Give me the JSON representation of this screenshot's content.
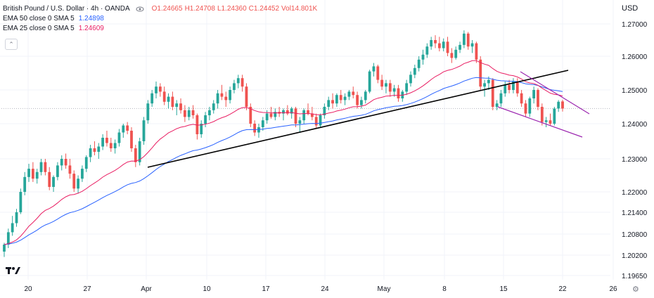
{
  "legend": {
    "symbol": "British Pound / U.S. Dollar · 4h · OANDA",
    "open": "O1.24665",
    "high": "H1.24708",
    "low": "L1.24360",
    "close": "C1.24452",
    "volume": "Vol14.801K",
    "ema50_label": "EMA 50 close 0 SMA 5",
    "ema50_value": "1.24898",
    "ema25_label": "EMA 25 close 0 SMA 5",
    "ema25_value": "1.24609"
  },
  "currency": "USD",
  "collapse_icon": "chevron-up-icon",
  "colors": {
    "up": "#26a69a",
    "down": "#ef5350",
    "ema50": "#2962ff",
    "ema25": "#e91e63",
    "trendline": "#000000",
    "channel": "#9c27b0"
  },
  "chart_data": {
    "type": "candlestick",
    "timeframe": "4h",
    "x_ticks": [
      "20",
      "27",
      "Apr",
      "10",
      "17",
      "24",
      "May",
      "8",
      "15",
      "22",
      "26"
    ],
    "y_ticks": [
      "1.27000",
      "1.26000",
      "1.25000",
      "1.24000",
      "1.23000",
      "1.22000",
      "1.21400",
      "1.20800",
      "1.20200",
      "1.19650"
    ],
    "last_price_line": 1.2445,
    "candles": [
      [
        1.203,
        1.2055,
        1.2015,
        1.205
      ],
      [
        1.205,
        1.2095,
        1.204,
        1.2085
      ],
      [
        1.2085,
        1.213,
        1.2075,
        1.211
      ],
      [
        1.211,
        1.215,
        1.21,
        1.214
      ],
      [
        1.214,
        1.221,
        1.2135,
        1.22
      ],
      [
        1.22,
        1.226,
        1.219,
        1.2245
      ],
      [
        1.2245,
        1.2285,
        1.223,
        1.227
      ],
      [
        1.227,
        1.229,
        1.223,
        1.224
      ],
      [
        1.224,
        1.227,
        1.2225,
        1.226
      ],
      [
        1.226,
        1.23,
        1.225,
        1.229
      ],
      [
        1.229,
        1.23,
        1.225,
        1.226
      ],
      [
        1.226,
        1.2275,
        1.2205,
        1.2215
      ],
      [
        1.2215,
        1.225,
        1.22,
        1.2245
      ],
      [
        1.2245,
        1.229,
        1.2235,
        1.228
      ],
      [
        1.228,
        1.231,
        1.2265,
        1.23
      ],
      [
        1.23,
        1.2315,
        1.227,
        1.228
      ],
      [
        1.228,
        1.23,
        1.224,
        1.2255
      ],
      [
        1.2255,
        1.2265,
        1.22,
        1.221
      ],
      [
        1.221,
        1.225,
        1.2195,
        1.224
      ],
      [
        1.224,
        1.228,
        1.223,
        1.227
      ],
      [
        1.227,
        1.231,
        1.226,
        1.2305
      ],
      [
        1.2305,
        1.234,
        1.229,
        1.233
      ],
      [
        1.233,
        1.235,
        1.231,
        1.232
      ],
      [
        1.232,
        1.2345,
        1.23,
        1.2335
      ],
      [
        1.2335,
        1.237,
        1.2325,
        1.236
      ],
      [
        1.236,
        1.238,
        1.2335,
        1.2345
      ],
      [
        1.2345,
        1.236,
        1.232,
        1.233
      ],
      [
        1.233,
        1.2355,
        1.2315,
        1.2345
      ],
      [
        1.2345,
        1.2385,
        1.2335,
        1.2375
      ],
      [
        1.2375,
        1.24,
        1.236,
        1.2395
      ],
      [
        1.2395,
        1.2405,
        1.237,
        1.238
      ],
      [
        1.238,
        1.239,
        1.232,
        1.233
      ],
      [
        1.233,
        1.234,
        1.2275,
        1.229
      ],
      [
        1.229,
        1.236,
        1.228,
        1.235
      ],
      [
        1.235,
        1.242,
        1.234,
        1.241
      ],
      [
        1.241,
        1.247,
        1.24,
        1.246
      ],
      [
        1.246,
        1.25,
        1.245,
        1.249
      ],
      [
        1.249,
        1.2525,
        1.2475,
        1.251
      ],
      [
        1.251,
        1.252,
        1.248,
        1.2495
      ],
      [
        1.2495,
        1.251,
        1.2455,
        1.2465
      ],
      [
        1.2465,
        1.249,
        1.2445,
        1.248
      ],
      [
        1.248,
        1.2495,
        1.244,
        1.245
      ],
      [
        1.245,
        1.247,
        1.2425,
        1.246
      ],
      [
        1.246,
        1.2475,
        1.243,
        1.244
      ],
      [
        1.244,
        1.2455,
        1.2405,
        1.242
      ],
      [
        1.242,
        1.245,
        1.241,
        1.244
      ],
      [
        1.244,
        1.2455,
        1.2415,
        1.2425
      ],
      [
        1.2425,
        1.243,
        1.2355,
        1.237
      ],
      [
        1.237,
        1.241,
        1.236,
        1.24
      ],
      [
        1.24,
        1.2435,
        1.239,
        1.2425
      ],
      [
        1.2425,
        1.245,
        1.241,
        1.244
      ],
      [
        1.244,
        1.247,
        1.243,
        1.246
      ],
      [
        1.246,
        1.25,
        1.2445,
        1.249
      ],
      [
        1.249,
        1.2515,
        1.247,
        1.248
      ],
      [
        1.248,
        1.2495,
        1.245,
        1.247
      ],
      [
        1.247,
        1.251,
        1.246,
        1.25
      ],
      [
        1.25,
        1.253,
        1.249,
        1.252
      ],
      [
        1.252,
        1.2545,
        1.2505,
        1.2535
      ],
      [
        1.2535,
        1.2545,
        1.2495,
        1.251
      ],
      [
        1.251,
        1.252,
        1.244,
        1.245
      ],
      [
        1.245,
        1.246,
        1.239,
        1.24
      ],
      [
        1.24,
        1.241,
        1.2365,
        1.2375
      ],
      [
        1.2375,
        1.24,
        1.236,
        1.239
      ],
      [
        1.239,
        1.242,
        1.238,
        1.241
      ],
      [
        1.241,
        1.244,
        1.24,
        1.243
      ],
      [
        1.243,
        1.245,
        1.2415,
        1.242
      ],
      [
        1.242,
        1.2445,
        1.241,
        1.2435
      ],
      [
        1.2435,
        1.245,
        1.242,
        1.243
      ],
      [
        1.243,
        1.2445,
        1.241,
        1.244
      ],
      [
        1.244,
        1.2455,
        1.2425,
        1.243
      ],
      [
        1.243,
        1.245,
        1.2415,
        1.2445
      ],
      [
        1.2445,
        1.245,
        1.239,
        1.24
      ],
      [
        1.24,
        1.242,
        1.2375,
        1.241
      ],
      [
        1.241,
        1.2445,
        1.24,
        1.244
      ],
      [
        1.244,
        1.246,
        1.2425,
        1.243
      ],
      [
        1.243,
        1.245,
        1.241,
        1.242
      ],
      [
        1.242,
        1.243,
        1.2385,
        1.2395
      ],
      [
        1.2395,
        1.243,
        1.239,
        1.2425
      ],
      [
        1.2425,
        1.246,
        1.2415,
        1.245
      ],
      [
        1.245,
        1.248,
        1.244,
        1.247
      ],
      [
        1.247,
        1.249,
        1.2445,
        1.246
      ],
      [
        1.246,
        1.249,
        1.245,
        1.2485
      ],
      [
        1.2485,
        1.25,
        1.246,
        1.247
      ],
      [
        1.247,
        1.249,
        1.2455,
        1.248
      ],
      [
        1.248,
        1.25,
        1.247,
        1.2495
      ],
      [
        1.2495,
        1.251,
        1.2475,
        1.2485
      ],
      [
        1.2485,
        1.2495,
        1.2445,
        1.2455
      ],
      [
        1.2455,
        1.248,
        1.2445,
        1.247
      ],
      [
        1.247,
        1.25,
        1.246,
        1.2495
      ],
      [
        1.2495,
        1.256,
        1.249,
        1.2555
      ],
      [
        1.2555,
        1.258,
        1.254,
        1.257
      ],
      [
        1.257,
        1.2575,
        1.252,
        1.253
      ],
      [
        1.253,
        1.2545,
        1.25,
        1.251
      ],
      [
        1.251,
        1.253,
        1.249,
        1.252
      ],
      [
        1.252,
        1.253,
        1.248,
        1.2495
      ],
      [
        1.2495,
        1.2515,
        1.248,
        1.2505
      ],
      [
        1.2505,
        1.2515,
        1.2465,
        1.2475
      ],
      [
        1.2475,
        1.25,
        1.2465,
        1.2495
      ],
      [
        1.2495,
        1.253,
        1.2485,
        1.252
      ],
      [
        1.252,
        1.2555,
        1.251,
        1.2545
      ],
      [
        1.2545,
        1.2575,
        1.2535,
        1.2565
      ],
      [
        1.2565,
        1.26,
        1.2555,
        1.259
      ],
      [
        1.259,
        1.262,
        1.2575,
        1.2605
      ],
      [
        1.2605,
        1.264,
        1.2595,
        1.263
      ],
      [
        1.263,
        1.266,
        1.262,
        1.265
      ],
      [
        1.265,
        1.2665,
        1.2625,
        1.264
      ],
      [
        1.264,
        1.266,
        1.2615,
        1.2625
      ],
      [
        1.2625,
        1.2655,
        1.2615,
        1.2645
      ],
      [
        1.2645,
        1.266,
        1.26,
        1.261
      ],
      [
        1.261,
        1.2625,
        1.258,
        1.2595
      ],
      [
        1.2595,
        1.263,
        1.259,
        1.262
      ],
      [
        1.262,
        1.2645,
        1.261,
        1.2635
      ],
      [
        1.2635,
        1.268,
        1.2625,
        1.267
      ],
      [
        1.267,
        1.2675,
        1.262,
        1.263
      ],
      [
        1.263,
        1.265,
        1.261,
        1.264
      ],
      [
        1.264,
        1.2645,
        1.258,
        1.259
      ],
      [
        1.259,
        1.26,
        1.25,
        1.251
      ],
      [
        1.251,
        1.253,
        1.248,
        1.252
      ],
      [
        1.252,
        1.254,
        1.25,
        1.253
      ],
      [
        1.253,
        1.2535,
        1.244,
        1.245
      ],
      [
        1.245,
        1.247,
        1.244,
        1.246
      ],
      [
        1.246,
        1.25,
        1.245,
        1.249
      ],
      [
        1.249,
        1.2525,
        1.248,
        1.2515
      ],
      [
        1.2515,
        1.253,
        1.249,
        1.25
      ],
      [
        1.25,
        1.2535,
        1.249,
        1.2525
      ],
      [
        1.2525,
        1.2535,
        1.248,
        1.249
      ],
      [
        1.249,
        1.25,
        1.245,
        1.246
      ],
      [
        1.246,
        1.247,
        1.242,
        1.243
      ],
      [
        1.243,
        1.248,
        1.242,
        1.2475
      ],
      [
        1.2475,
        1.251,
        1.246,
        1.25
      ],
      [
        1.25,
        1.2505,
        1.244,
        1.245
      ],
      [
        1.245,
        1.246,
        1.2395,
        1.2405
      ],
      [
        1.2405,
        1.242,
        1.239,
        1.241
      ],
      [
        1.241,
        1.243,
        1.2395,
        1.24
      ],
      [
        1.24,
        1.245,
        1.2395,
        1.2445
      ],
      [
        1.2445,
        1.247,
        1.2435,
        1.2465
      ],
      [
        1.2466,
        1.2471,
        1.2436,
        1.2445
      ]
    ]
  }
}
